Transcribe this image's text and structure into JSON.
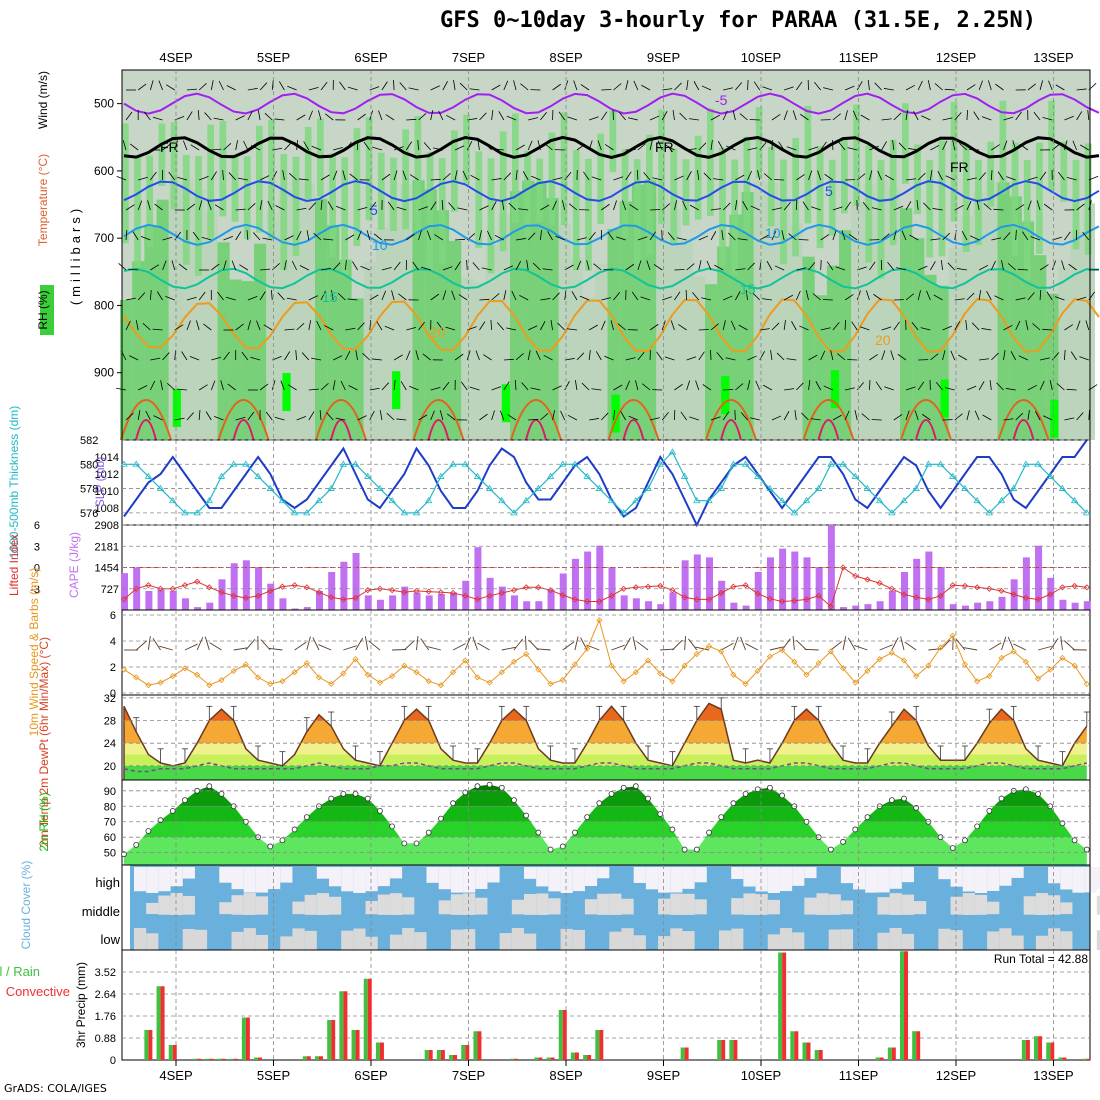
{
  "title": "GFS 0~10day 3-hourly for PARAA (31.5E, 2.25N)",
  "credit": "GrADS: COLA/IGES",
  "colors": {
    "rh_green": "#3ccf3c",
    "rh_light": "#7ed67e",
    "rh_bright": "#00ff00",
    "rh_grey": "#c7d6c7",
    "temp_purple": "#a020f0",
    "temp_black": "#000000",
    "temp_blue": "#1e50e6",
    "temp_cyan": "#1e9ae6",
    "temp_teal": "#12c39a",
    "temp_orange": "#ef9b1c",
    "temp_darkorange": "#e2631c",
    "temp_red": "#e0186c",
    "slp": "#1e3cc8",
    "thickness": "#22b8c8",
    "cape": "#c070f0",
    "li": "#e03030",
    "wind10": "#e8961c",
    "cloud_blue": "#6ab0dc",
    "cloud_white": "#f4f2f8",
    "precip_green": "#40c040",
    "precip_red": "#ef3030"
  },
  "chart_data": [
    {
      "type": "heatmap",
      "name_panel": "upper-air",
      "ylabel_rh": "RH (%)",
      "ylabel_temp": "Temperature (°C)",
      "ylabel_wind": "Wind (m/s)",
      "ylabel_axis": "(millibars)",
      "yticks": [
        "500",
        "600",
        "700",
        "800",
        "900"
      ],
      "ylim": [
        1000,
        450
      ],
      "x_ticks": [
        "4SEP",
        "5SEP",
        "6SEP",
        "7SEP",
        "8SEP",
        "9SEP",
        "10SEP",
        "11SEP",
        "12SEP",
        "13SEP"
      ],
      "contour_labels": [
        "-5",
        "FR",
        "FR",
        "FR",
        "5",
        "5",
        "10",
        "10",
        "15",
        "15",
        "20",
        "20"
      ],
      "isotherms": [
        {
          "label": "-5",
          "level_mb": 500
        },
        {
          "label": "FR",
          "level_mb": 565
        },
        {
          "label": "5",
          "level_mb": 630
        },
        {
          "label": "10",
          "level_mb": 695
        },
        {
          "label": "15",
          "level_mb": 760
        },
        {
          "label": "20",
          "level_mb": 830
        }
      ]
    },
    {
      "type": "line",
      "name_panel": "slp-thickness",
      "ylabel_left": "1000-500mb Thickness (dm)",
      "ylabel_right": "SLP (mb)",
      "yticks_left": [
        "582",
        "580",
        "578",
        "576"
      ],
      "yticks_right": [
        "1014",
        "1012",
        "1010",
        "1008"
      ],
      "ylim_left": [
        575,
        582
      ],
      "ylim_right": [
        1006,
        1016
      ],
      "series": [
        {
          "name": "SLP",
          "axis": "right",
          "values": [
            1007,
            1009,
            1011,
            1012,
            1014,
            1012,
            1010,
            1008,
            1008,
            1010,
            1012,
            1014,
            1012,
            1009,
            1008,
            1009,
            1011,
            1013,
            1015,
            1012,
            1009,
            1008,
            1010,
            1012,
            1015,
            1013,
            1010,
            1008,
            1008,
            1010,
            1013,
            1015,
            1014,
            1011,
            1009,
            1009,
            1011,
            1013,
            1014,
            1012,
            1009,
            1007,
            1008,
            1011,
            1014,
            1012,
            1009,
            1006,
            1009,
            1011,
            1013,
            1014,
            1012,
            1010,
            1008,
            1010,
            1012,
            1014,
            1014,
            1012,
            1009,
            1008,
            1010,
            1012,
            1014,
            1013,
            1010,
            1008,
            1010,
            1012,
            1014,
            1014,
            1012,
            1009,
            1008,
            1010,
            1012,
            1014,
            1014,
            1016
          ]
        },
        {
          "name": "Thickness",
          "axis": "left",
          "values": [
            580,
            580,
            579,
            578,
            577,
            576,
            576,
            577,
            579,
            580,
            580,
            579,
            578,
            577,
            576,
            576,
            577,
            578,
            580,
            580,
            579,
            578,
            577,
            576,
            576,
            577,
            579,
            580,
            580,
            579,
            578,
            577,
            576,
            577,
            578,
            579,
            580,
            580,
            579,
            578,
            577,
            576,
            577,
            578,
            580,
            581,
            579,
            577,
            577,
            578,
            580,
            580,
            579,
            578,
            577,
            576,
            577,
            578,
            580,
            580,
            579,
            578,
            577,
            576,
            577,
            578,
            580,
            580,
            579,
            578,
            577,
            576,
            577,
            578,
            580,
            580,
            579,
            578,
            577,
            576
          ]
        }
      ]
    },
    {
      "type": "bar",
      "name_panel": "cape-li",
      "ylabel_left": "Lifted Index",
      "ylabel_right": "CAPE (J/kg)",
      "yticks_left": [
        "-3",
        "0",
        "3",
        "6"
      ],
      "yticks_right": [
        "2908",
        "2181",
        "1454",
        "727"
      ],
      "ylim_left": [
        6,
        -6
      ],
      "ylim_right": [
        0,
        2908
      ],
      "series": [
        {
          "name": "CAPE",
          "axis": "right",
          "values": [
            1260,
            1450,
            650,
            700,
            650,
            400,
            100,
            250,
            1050,
            1600,
            1700,
            1450,
            900,
            400,
            50,
            100,
            650,
            1300,
            1650,
            1950,
            500,
            350,
            500,
            800,
            600,
            500,
            550,
            600,
            1000,
            2150,
            1100,
            800,
            500,
            300,
            300,
            700,
            1250,
            1750,
            2000,
            2200,
            1450,
            500,
            400,
            300,
            200,
            600,
            1700,
            1900,
            1800,
            1000,
            250,
            150,
            1300,
            1800,
            2100,
            2000,
            1800,
            1450,
            2908,
            100,
            150,
            200,
            300,
            650,
            1300,
            1750,
            2000,
            1450,
            200,
            150,
            250,
            300,
            450,
            1050,
            1800,
            2200,
            1100,
            350,
            250,
            300,
            350,
            450,
            1400,
            2200,
            2150,
            1000,
            150,
            250,
            200
          ]
        },
        {
          "name": "Lifted Index",
          "axis": "left",
          "values": [
            -4.5,
            -3,
            -2.5,
            -3,
            -3,
            -2.5,
            -2,
            -2.8,
            -3.5,
            -4,
            -4.3,
            -4,
            -3.3,
            -2.7,
            -2.5,
            -2.8,
            -3.5,
            -4.2,
            -4.5,
            -4.3,
            -3.2,
            -3,
            -3.2,
            -3.5,
            -3.3,
            -3.4,
            -3.5,
            -3.6,
            -4,
            -4.5,
            -4,
            -3.6,
            -3.2,
            -2.8,
            -2.8,
            -3.2,
            -3.9,
            -4.5,
            -4.8,
            -4.8,
            -4,
            -3,
            -2.8,
            -2.7,
            -2.6,
            -3.2,
            -4.2,
            -4.5,
            -4.5,
            -3.6,
            -2.7,
            -2.5,
            -3.7,
            -4.4,
            -4.8,
            -4.7,
            -4.5,
            -4,
            -5.5,
            0,
            -1.2,
            -1.7,
            -2.2,
            -3,
            -3.8,
            -4.2,
            -4.5,
            -4,
            -2.5,
            -2.6,
            -2.8,
            -3,
            -3.3,
            -3.8,
            -4.3,
            -4.5,
            -3.8,
            -2.8,
            -2.6,
            -2.8,
            -2.9,
            -3,
            -3.8,
            -4.5,
            -4.5,
            -3.5,
            -2.6,
            -2.8,
            -2.9
          ]
        }
      ]
    },
    {
      "type": "line",
      "name_panel": "wind10m",
      "ylabel": "10m Wind Speed & Barbs (m/s)",
      "yticks": [
        "6",
        "4",
        "2",
        "0"
      ],
      "ylim": [
        0,
        6
      ],
      "series": [
        {
          "name": "10m Wind Speed",
          "values": [
            1.8,
            1.2,
            0.6,
            0.8,
            1.3,
            1.9,
            1.4,
            0.6,
            1,
            1.7,
            2.2,
            1.2,
            0.7,
            0.9,
            1.6,
            2.3,
            1.2,
            0.7,
            1.5,
            2.6,
            1.4,
            0.8,
            1.3,
            2.1,
            1.6,
            0.9,
            0.6,
            1.6,
            2.5,
            1.2,
            0.8,
            1.6,
            2.4,
            3,
            1.8,
            0.7,
            1,
            2.2,
            3.4,
            5.6,
            2.1,
            0.9,
            1.6,
            2.5,
            1.5,
            0.9,
            2.1,
            3,
            3.6,
            3.2,
            1.4,
            0.7,
            1.7,
            2.8,
            3.3,
            2.4,
            1.4,
            2.3,
            3.2,
            1.9,
            0.8,
            1.7,
            2.6,
            3.1,
            2.5,
            1.3,
            2.1,
            3.5,
            4.4,
            2.2,
            0.9,
            1.3,
            2.7,
            3.2,
            2.4,
            1.1,
            1.8,
            2.7,
            2.1,
            0.7,
            1.6,
            2.9,
            3.3,
            5.9,
            2.6,
            1.2,
            2.5,
            3.5,
            1.9,
            0.6
          ]
        }
      ]
    },
    {
      "type": "area",
      "name_panel": "temp2m",
      "ylabel": "2m Temp 2m DewPt (6hr Min/Max) (°C)",
      "yticks": [
        "32",
        "28",
        "24",
        "20"
      ],
      "ylim": [
        17.5,
        32.5
      ],
      "series": [
        {
          "name": "2m Temp",
          "values": [
            30.5,
            26,
            22,
            20.5,
            20,
            20.5,
            24,
            28,
            30,
            28,
            23,
            21,
            20.5,
            20,
            22,
            26,
            29,
            27,
            23,
            21,
            20.5,
            20,
            24,
            28,
            30,
            28,
            23,
            21,
            20.5,
            20.5,
            24,
            28,
            30,
            28,
            23,
            21,
            20.5,
            20.5,
            24,
            28,
            30.5,
            28,
            24,
            21,
            20.5,
            20,
            24,
            28,
            31,
            30,
            21,
            20.5,
            21,
            20.5,
            24,
            28,
            30,
            28,
            24,
            21,
            20.5,
            20.5,
            24,
            27,
            30,
            28,
            23.5,
            21,
            21,
            21,
            24,
            27.5,
            30,
            28,
            23,
            21,
            20.5,
            20,
            24,
            27,
            30,
            28,
            23.5,
            21.5,
            21,
            20.5,
            23
          ]
        },
        {
          "name": "2m DewPt",
          "values": [
            19.5,
            19,
            19,
            19.5,
            19.5,
            19.5,
            20,
            20.5,
            20,
            19.5,
            19.5,
            19.5,
            19.5,
            19.5,
            19.5,
            20,
            20.5,
            20,
            19.5,
            19.5,
            19.5,
            20,
            20,
            20.5,
            20.5,
            20,
            19.5,
            19.5,
            19.5,
            19.5,
            20,
            20.5,
            20.5,
            20,
            19.5,
            19.5,
            19.5,
            19.5,
            20,
            20.5,
            20.5,
            20,
            19.5,
            19.5,
            19.5,
            19.5,
            20,
            20.5,
            20.5,
            20,
            19.5,
            19.5,
            19.5,
            19.5,
            20,
            20.5,
            20.5,
            20,
            19.5,
            19.5,
            19.5,
            19.5,
            20,
            20.5,
            20.5,
            20,
            19.5,
            19.5,
            19.5,
            19.5,
            20,
            20.5,
            20.5,
            20,
            19.5,
            19.5,
            19.5,
            19.5,
            20,
            20.5,
            20.5,
            20,
            19.5,
            19.5,
            19.5,
            19.5,
            19.5
          ]
        }
      ]
    },
    {
      "type": "area",
      "name_panel": "rh2m",
      "ylabel": "2m RH (%)",
      "yticks": [
        "90",
        "80",
        "70",
        "60",
        "50"
      ],
      "ylim": [
        42,
        97
      ],
      "series": [
        {
          "name": "2m RH",
          "values": [
            49,
            55,
            64,
            71,
            77,
            84,
            90,
            93,
            88,
            80,
            70,
            60,
            54,
            58,
            65,
            73,
            80,
            85,
            88,
            88,
            85,
            77,
            67,
            56,
            56,
            63,
            72,
            82,
            89,
            93,
            94,
            92,
            84,
            74,
            63,
            52,
            54,
            63,
            73,
            82,
            88,
            92,
            93,
            85,
            75,
            65,
            52,
            52,
            63,
            73,
            82,
            88,
            91,
            92,
            87,
            80,
            70,
            60,
            52,
            57,
            65,
            73,
            80,
            84,
            85,
            79,
            70,
            60,
            53,
            58,
            67,
            77,
            85,
            90,
            91,
            88,
            80,
            69,
            58,
            52,
            60,
            70,
            80,
            87,
            91,
            93,
            92,
            85,
            76
          ]
        }
      ]
    },
    {
      "type": "heatmap",
      "name_panel": "cloud",
      "ylabel": "Cloud Cover (%)",
      "rows": [
        "high",
        "middle",
        "low"
      ]
    },
    {
      "type": "bar",
      "name_panel": "precip",
      "ylabel": "3hr Precip (mm)",
      "legend": [
        "Total / Rain",
        "Convective"
      ],
      "run_total_label": "Run Total = 42.88",
      "yticks": [
        "3.52",
        "2.64",
        "1.76",
        "0.88",
        "0"
      ],
      "ylim": [
        0,
        4.4
      ],
      "series": [
        {
          "name": "Total / Rain",
          "values": [
            0,
            0,
            1.2,
            2.95,
            0.6,
            0,
            0.05,
            0.05,
            0.05,
            0.05,
            1.7,
            0.1,
            0,
            0,
            0,
            0.15,
            0.15,
            1.6,
            2.75,
            1.2,
            3.25,
            0.7,
            0,
            0,
            0,
            0.4,
            0.4,
            0.2,
            0.6,
            1.15,
            0,
            0,
            0.05,
            0,
            0.1,
            0.1,
            2.0,
            0.3,
            0.2,
            1.2,
            0,
            0,
            0,
            0,
            0,
            0,
            0.5,
            0,
            0,
            0.8,
            0.8,
            0,
            0,
            0,
            4.3,
            1.15,
            0.7,
            0.4,
            0,
            0,
            0,
            0,
            0.1,
            0.5,
            4.35,
            1.15,
            0,
            0,
            0,
            0,
            0,
            0,
            0,
            0,
            0.8,
            0.95,
            0.7,
            0.1,
            0,
            0.05,
            0.2,
            0,
            0.7,
            1.05,
            0,
            0,
            0,
            0.1,
            0.1
          ]
        }
      ],
      "x_ticks": [
        "4SEP",
        "5SEP",
        "6SEP",
        "7SEP",
        "8SEP",
        "9SEP",
        "10SEP",
        "11SEP",
        "12SEP",
        "13SEP"
      ]
    }
  ]
}
